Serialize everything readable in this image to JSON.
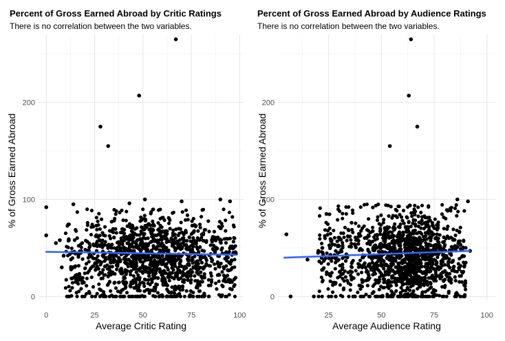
{
  "chart_data": [
    {
      "type": "scatter",
      "title": "Percent of Gross Earned Abroad by Critic Ratings",
      "subtitle": "There is no correlation between the two variables.",
      "xlabel": "Average Critic Rating",
      "ylabel": "% of Gross Earned Abroad",
      "xlim": [
        -4,
        102
      ],
      "ylim": [
        -4,
        270
      ],
      "xticks": [
        0,
        25,
        50,
        75,
        100
      ],
      "yticks": [
        0,
        100,
        200
      ],
      "grid": true,
      "point_color": "#000000",
      "trend_color": "#3366ff",
      "trend": {
        "x": [
          0,
          98
        ],
        "y": [
          46,
          43
        ]
      },
      "highlight_points": [
        {
          "x": 0,
          "y": 92
        },
        {
          "x": 0,
          "y": 63
        },
        {
          "x": 98,
          "y": 44
        },
        {
          "x": 28,
          "y": 175
        },
        {
          "x": 32,
          "y": 155
        },
        {
          "x": 48,
          "y": 207
        },
        {
          "x": 67,
          "y": 265
        },
        {
          "x": 51,
          "y": 100
        },
        {
          "x": 90,
          "y": 100
        },
        {
          "x": 95,
          "y": 98
        },
        {
          "x": 14,
          "y": 95
        },
        {
          "x": 43,
          "y": 96
        },
        {
          "x": 5,
          "y": 55
        },
        {
          "x": 7,
          "y": 58
        },
        {
          "x": 8,
          "y": 30
        },
        {
          "x": 9,
          "y": 42
        },
        {
          "x": 70,
          "y": 98
        }
      ],
      "cloud": {
        "x_range": [
          10,
          98
        ],
        "y_range": [
          0,
          90
        ],
        "n": 1400,
        "x_center": 55,
        "x_spread": 22
      }
    },
    {
      "type": "scatter",
      "title": "Percent of Gross Earned Abroad by Audience Ratings",
      "subtitle": "There is no correlation between the two variables.",
      "xlabel": "Average Audience Rating",
      "ylabel": "% of Gross Earned Abroad",
      "xlim": [
        1,
        104
      ],
      "ylim": [
        -4,
        270
      ],
      "xticks": [
        25,
        50,
        75,
        100
      ],
      "yticks": [
        0,
        100,
        200
      ],
      "grid": true,
      "point_color": "#000000",
      "trend_color": "#3366ff",
      "trend": {
        "x": [
          4,
          92
        ],
        "y": [
          40,
          47
        ]
      },
      "highlight_points": [
        {
          "x": 5,
          "y": 64
        },
        {
          "x": 7,
          "y": 0
        },
        {
          "x": 18,
          "y": 0
        },
        {
          "x": 15,
          "y": 38
        },
        {
          "x": 64,
          "y": 265
        },
        {
          "x": 63,
          "y": 207
        },
        {
          "x": 67,
          "y": 175
        },
        {
          "x": 54,
          "y": 155
        },
        {
          "x": 91,
          "y": 98
        },
        {
          "x": 86,
          "y": 100
        },
        {
          "x": 20,
          "y": 45
        },
        {
          "x": 22,
          "y": 50
        },
        {
          "x": 92,
          "y": 47
        },
        {
          "x": 24,
          "y": 85
        }
      ],
      "cloud": {
        "x_range": [
          20,
          90
        ],
        "y_range": [
          0,
          95
        ],
        "n": 1400,
        "x_center": 62,
        "x_spread": 13
      }
    }
  ]
}
